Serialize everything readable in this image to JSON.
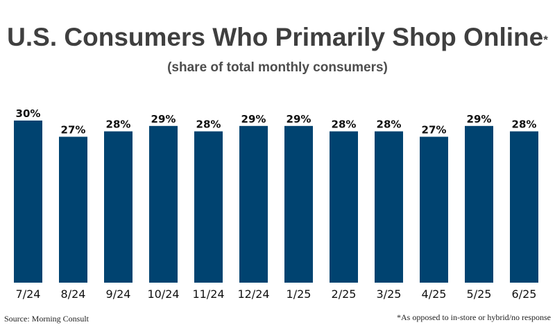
{
  "colors": {
    "bar": "#004370",
    "title": "#3f3f3f",
    "subtitle": "#4d4d4d",
    "text": "#111111",
    "background": "#ffffff"
  },
  "chart_data": {
    "type": "bar",
    "title": "U.S. Consumers Who Primarily Shop Online",
    "title_marker": "*",
    "subtitle": "(share of total monthly consumers)",
    "categories": [
      "7/24",
      "8/24",
      "9/24",
      "10/24",
      "11/24",
      "12/24",
      "1/25",
      "2/25",
      "3/25",
      "4/25",
      "5/25",
      "6/25"
    ],
    "values": [
      30,
      27,
      28,
      29,
      28,
      29,
      29,
      28,
      28,
      27,
      29,
      28
    ],
    "data_labels": [
      "30%",
      "27%",
      "28%",
      "29%",
      "28%",
      "29%",
      "29%",
      "28%",
      "28%",
      "27%",
      "29%",
      "28%"
    ],
    "unit": "%",
    "xlabel": "",
    "ylabel": "",
    "ylim": [
      0,
      30
    ],
    "grid": false,
    "legend": "none"
  },
  "footer": {
    "source": "Source: Morning Consult",
    "footnote": "*As opposed to in-store or hybrid/no response"
  }
}
